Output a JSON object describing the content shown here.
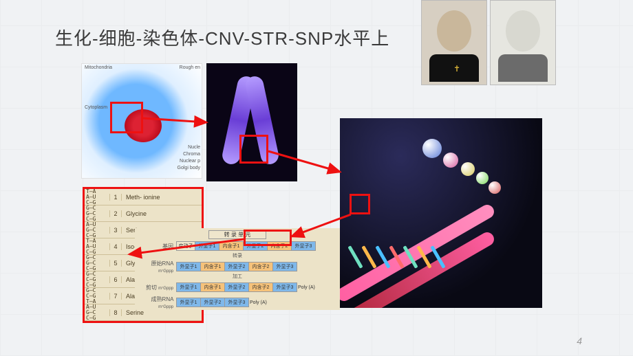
{
  "title": "生化-细胞-染色体-CNV-STR-SNP水平上",
  "page_number": "4",
  "cell_labels": {
    "mito": "Mitochondria",
    "cytoplasm": "Cytoplasm",
    "rough_er": "Rough en",
    "nucle": "Nucle",
    "chroma": "Chroma",
    "nuclear_p": "Nuclear p",
    "golgi": "Golgi body"
  },
  "codon_table": [
    {
      "bases": "T—A\nA—U\nC—G",
      "n": "1",
      "aa": "Meth-\nionine"
    },
    {
      "bases": "G—C\nG—C\nC—G",
      "n": "2",
      "aa": "Glycine"
    },
    {
      "bases": "A—U\nG—C\nC—G",
      "n": "3",
      "aa": "Serine"
    },
    {
      "bases": "T—A\nA—U\nC—G",
      "n": "4",
      "aa": "Iso-\nleucine"
    },
    {
      "bases": "G—C\nG—C\nC—G",
      "n": "5",
      "aa": "Glycine"
    },
    {
      "bases": "G—C\nC—G\nC—G",
      "n": "6",
      "aa": "Alanine"
    },
    {
      "bases": "G—C\nC—G\nT—A",
      "n": "7",
      "aa": "Alanine"
    },
    {
      "bases": "A—U\nG—C\nC—G",
      "n": "8",
      "aa": "Serine"
    }
  ],
  "tx": {
    "unit": "转 录 单 元",
    "gene": "基因",
    "promoter": "启动子",
    "exon1": "外显子1",
    "intron1": "内含子1",
    "exon2": "外显子2",
    "intron2": "内含子2",
    "exon3": "外显子3",
    "transcribe": "转录",
    "raw_rna": "原始RNA",
    "cap": "m⁷Gppp",
    "process": "加工",
    "splice": "剪切",
    "mature_rna": "成熟RNA",
    "polyA": "Poly (A)"
  },
  "arrow_color": "#e11"
}
